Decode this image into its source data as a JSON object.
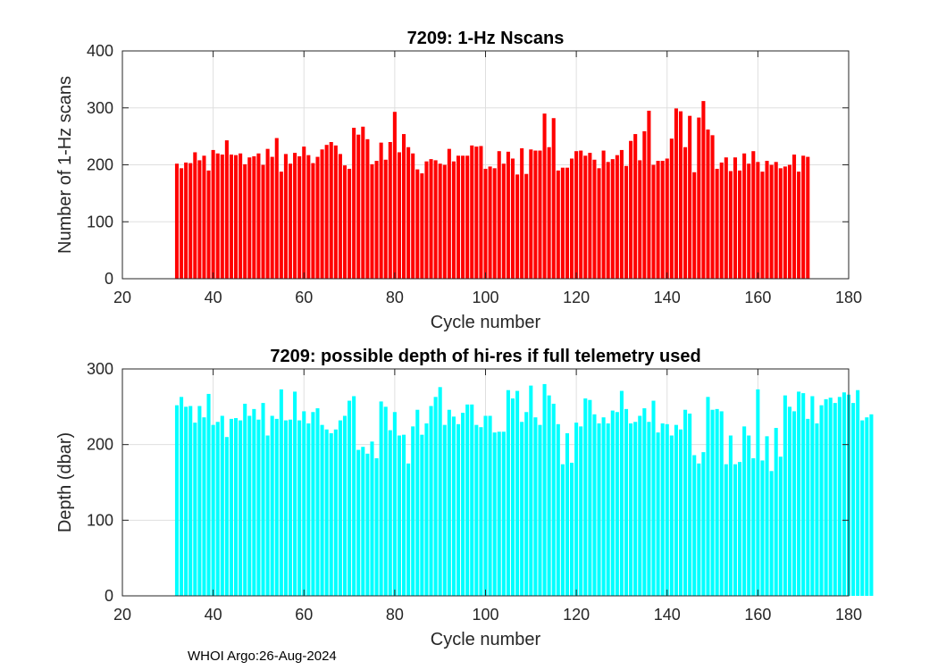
{
  "footer": "WHOI Argo:26-Aug-2024",
  "colors": {
    "top_bars": "#ff0000",
    "bottom_bars": "#00ffff"
  },
  "chart_data": [
    {
      "type": "bar",
      "title": "7209: 1-Hz Nscans",
      "xlabel": "Cycle number",
      "ylabel": "Number of 1-Hz scans",
      "xlim": [
        20,
        180
      ],
      "ylim": [
        0,
        400
      ],
      "xticks": [
        20,
        40,
        60,
        80,
        100,
        120,
        140,
        160,
        180
      ],
      "yticks": [
        0,
        100,
        200,
        300,
        400
      ],
      "grid": true,
      "x_start": 32,
      "values": [
        202,
        194,
        204,
        203,
        222,
        208,
        216,
        190,
        226,
        220,
        218,
        243,
        218,
        217,
        220,
        201,
        213,
        215,
        220,
        200,
        228,
        214,
        247,
        188,
        219,
        202,
        221,
        215,
        232,
        217,
        203,
        214,
        227,
        235,
        240,
        234,
        219,
        199,
        193,
        265,
        253,
        267,
        245,
        201,
        207,
        239,
        209,
        240,
        293,
        222,
        254,
        231,
        220,
        192,
        185,
        206,
        210,
        208,
        202,
        200,
        228,
        206,
        216,
        216,
        216,
        234,
        232,
        233,
        193,
        197,
        194,
        224,
        202,
        223,
        211,
        183,
        229,
        184,
        227,
        225,
        225,
        290,
        231,
        282,
        190,
        195,
        195,
        211,
        224,
        225,
        216,
        221,
        209,
        194,
        225,
        205,
        210,
        217,
        226,
        198,
        242,
        254,
        208,
        259,
        295,
        200,
        207,
        207,
        211,
        246,
        299,
        294,
        231,
        286,
        187,
        283,
        312,
        262,
        252,
        193,
        204,
        213,
        189,
        213,
        190,
        220,
        202,
        224,
        205,
        188,
        207,
        200,
        205,
        194,
        197,
        200,
        218,
        188,
        216,
        214
      ]
    },
    {
      "type": "bar",
      "title": "7209: possible depth of hi-res if full telemetry used",
      "xlabel": "Cycle number",
      "ylabel": "Depth (dbar)",
      "xlim": [
        20,
        180
      ],
      "ylim": [
        0,
        300
      ],
      "xticks": [
        20,
        40,
        60,
        80,
        100,
        120,
        140,
        160,
        180
      ],
      "yticks": [
        0,
        100,
        200,
        300
      ],
      "grid": true,
      "x_start": 32,
      "values": [
        252,
        263,
        250,
        251,
        229,
        251,
        236,
        267,
        226,
        230,
        238,
        210,
        234,
        235,
        232,
        254,
        238,
        247,
        233,
        255,
        212,
        238,
        234,
        273,
        232,
        233,
        270,
        232,
        244,
        228,
        243,
        248,
        226,
        220,
        215,
        220,
        232,
        238,
        258,
        264,
        193,
        197,
        188,
        204,
        182,
        257,
        250,
        219,
        243,
        212,
        213,
        175,
        224,
        246,
        213,
        228,
        251,
        263,
        276,
        226,
        246,
        237,
        227,
        242,
        253,
        253,
        226,
        223,
        238,
        238,
        216,
        217,
        217,
        272,
        261,
        271,
        230,
        243,
        278,
        236,
        226,
        280,
        265,
        254,
        227,
        174,
        215,
        176,
        229,
        224,
        261,
        259,
        240,
        228,
        236,
        228,
        245,
        243,
        271,
        247,
        228,
        230,
        238,
        248,
        230,
        258,
        216,
        228,
        227,
        212,
        226,
        220,
        246,
        241,
        186,
        175,
        190,
        263,
        246,
        247,
        244,
        174,
        212,
        174,
        177,
        224,
        212,
        182,
        273,
        179,
        211,
        165,
        222,
        184,
        265,
        250,
        244,
        270,
        268,
        234,
        264,
        228,
        252,
        260,
        262,
        255,
        263,
        269,
        266,
        255,
        272,
        232,
        236,
        240
      ]
    }
  ]
}
